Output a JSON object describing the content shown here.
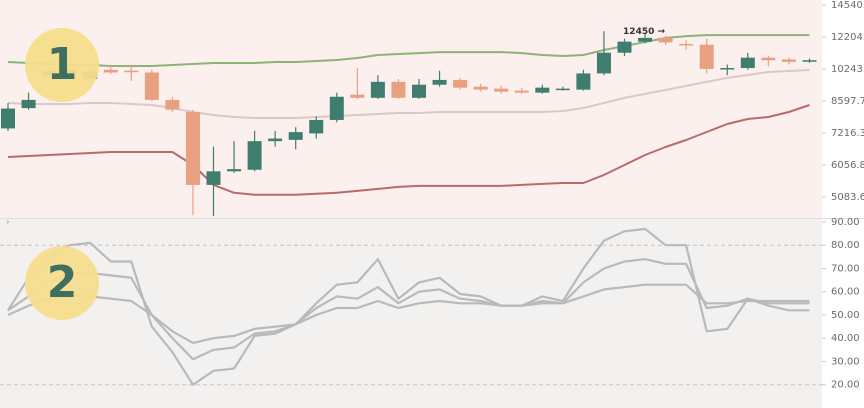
{
  "chart_data": [
    {
      "type": "candlestick",
      "badge": "1",
      "log_scale": true,
      "up_color": "#3f7d6e",
      "down_color": "#e8a080",
      "open": [
        7400,
        8270,
        9900,
        10000,
        9700,
        10200,
        10150,
        10050,
        8650,
        8100,
        5430,
        5850,
        5900,
        6900,
        6950,
        7200,
        7750,
        8900,
        8750,
        9550,
        8750,
        9400,
        9650,
        9300,
        9200,
        9100,
        9000,
        9150,
        9150,
        10000,
        11200,
        11900,
        12150,
        11750,
        11700,
        10250,
        10300,
        10900,
        10800,
        10750
      ],
      "high": [
        8500,
        9000,
        10300,
        10400,
        10300,
        10400,
        10500,
        10200,
        8800,
        8200,
        6700,
        6900,
        7300,
        7300,
        7450,
        7900,
        9000,
        10300,
        9900,
        9700,
        9700,
        10150,
        9750,
        9450,
        9350,
        9250,
        9400,
        9300,
        10200,
        12600,
        12100,
        12450,
        12300,
        12000,
        12100,
        10500,
        11200,
        11000,
        10900,
        10850
      ],
      "low": [
        7300,
        8200,
        9800,
        9900,
        9500,
        9950,
        9600,
        8600,
        8100,
        4600,
        4580,
        5800,
        5850,
        6700,
        6600,
        7000,
        7650,
        8700,
        8700,
        8700,
        8700,
        9300,
        9150,
        9050,
        8950,
        8950,
        8950,
        9100,
        9100,
        9900,
        11000,
        11800,
        11700,
        11400,
        10000,
        9900,
        10200,
        10400,
        10500,
        10600
      ],
      "close": [
        8250,
        8650,
        10150,
        10200,
        10100,
        10050,
        10100,
        8650,
        8200,
        5430,
        5850,
        5920,
        6900,
        7000,
        7250,
        7750,
        8800,
        8750,
        9550,
        8750,
        9400,
        9650,
        9250,
        9150,
        9050,
        9000,
        9250,
        9200,
        10000,
        11200,
        11900,
        12150,
        11850,
        11700,
        10250,
        10300,
        10900,
        10750,
        10650,
        10750
      ],
      "series": [
        {
          "color": "#8fb27a",
          "values": [
            10645,
            10587,
            10530,
            10470,
            10470,
            10413,
            10413,
            10413,
            10470,
            10530,
            10587,
            10587,
            10587,
            10645,
            10645,
            10703,
            10761,
            10880,
            11060,
            11120,
            11180,
            11240,
            11240,
            11240,
            11240,
            11180,
            11060,
            11000,
            11060,
            11366,
            11620,
            11880,
            12140,
            12270,
            12338,
            12338,
            12338,
            12338,
            12338,
            12338
          ]
        },
        {
          "color": "#dcc9c6",
          "values": [
            8505,
            8459,
            8459,
            8459,
            8505,
            8505,
            8459,
            8412,
            8275,
            8095,
            7963,
            7877,
            7834,
            7834,
            7834,
            7877,
            7920,
            7963,
            8007,
            8051,
            8051,
            8095,
            8095,
            8095,
            8095,
            8095,
            8095,
            8140,
            8275,
            8505,
            8746,
            8938,
            9130,
            9337,
            9545,
            9755,
            9913,
            10080,
            10133,
            10188
          ]
        },
        {
          "color": "#b86b6b",
          "values": [
            6327,
            6362,
            6397,
            6433,
            6468,
            6503,
            6503,
            6503,
            6503,
            6056,
            5429,
            5200,
            5144,
            5144,
            5144,
            5172,
            5200,
            5256,
            5313,
            5371,
            5400,
            5400,
            5400,
            5400,
            5400,
            5430,
            5459,
            5488,
            5488,
            5735,
            6056,
            6397,
            6684,
            6944,
            7256,
            7580,
            7791,
            7877,
            8095,
            8412
          ]
        }
      ],
      "annotation": {
        "value": 12450,
        "label": "12450 →"
      },
      "ylim": [
        4530,
        14950
      ],
      "yticks": [
        14540.6,
        12204.5,
        10243.6,
        8597.7,
        7216.3,
        6056.8,
        5083.6
      ]
    },
    {
      "type": "line",
      "badge": "2",
      "series": [
        {
          "color": "#b9b9b9",
          "values": [
            52,
            66,
            75,
            80,
            81,
            73,
            73,
            45,
            34,
            20,
            26,
            27,
            41,
            42,
            46,
            55,
            63,
            64,
            74,
            57,
            64,
            66,
            59,
            58,
            54,
            54,
            58,
            56,
            70,
            82,
            86,
            87,
            80,
            80,
            43,
            44,
            57,
            55,
            55,
            55
          ]
        },
        {
          "color": "#b9b9b9",
          "values": [
            52,
            58,
            64,
            68,
            68,
            67,
            66,
            50,
            40,
            31,
            35,
            36,
            42,
            43,
            46,
            53,
            58,
            57,
            62,
            55,
            60,
            61,
            57,
            56,
            54,
            54,
            56,
            55,
            64,
            70,
            73,
            74,
            72,
            72,
            53,
            54,
            57,
            54,
            52,
            52
          ]
        },
        {
          "color": "#b9b9b9",
          "values": [
            50,
            54,
            57,
            58,
            58,
            57,
            56,
            50,
            43,
            38,
            40,
            41,
            44,
            45,
            46,
            50,
            53,
            53,
            56,
            53,
            55,
            56,
            55,
            55,
            54,
            54,
            55,
            55,
            58,
            61,
            62,
            63,
            63,
            63,
            55,
            55,
            56,
            56,
            56,
            56
          ]
        }
      ],
      "levels": [
        80,
        20
      ],
      "ylim": [
        10,
        91.7
      ],
      "yticks": [
        {
          "value": 90,
          "label": "90.00"
        },
        {
          "value": 80,
          "label": "80.00"
        },
        {
          "value": 70,
          "label": "70.00"
        },
        {
          "value": 60,
          "label": "60.00"
        },
        {
          "value": 50,
          "label": "50.00"
        },
        {
          "value": 40,
          "label": "40.00"
        },
        {
          "value": 30,
          "label": "30.00"
        },
        {
          "value": 20,
          "label": "20.00"
        }
      ]
    }
  ]
}
